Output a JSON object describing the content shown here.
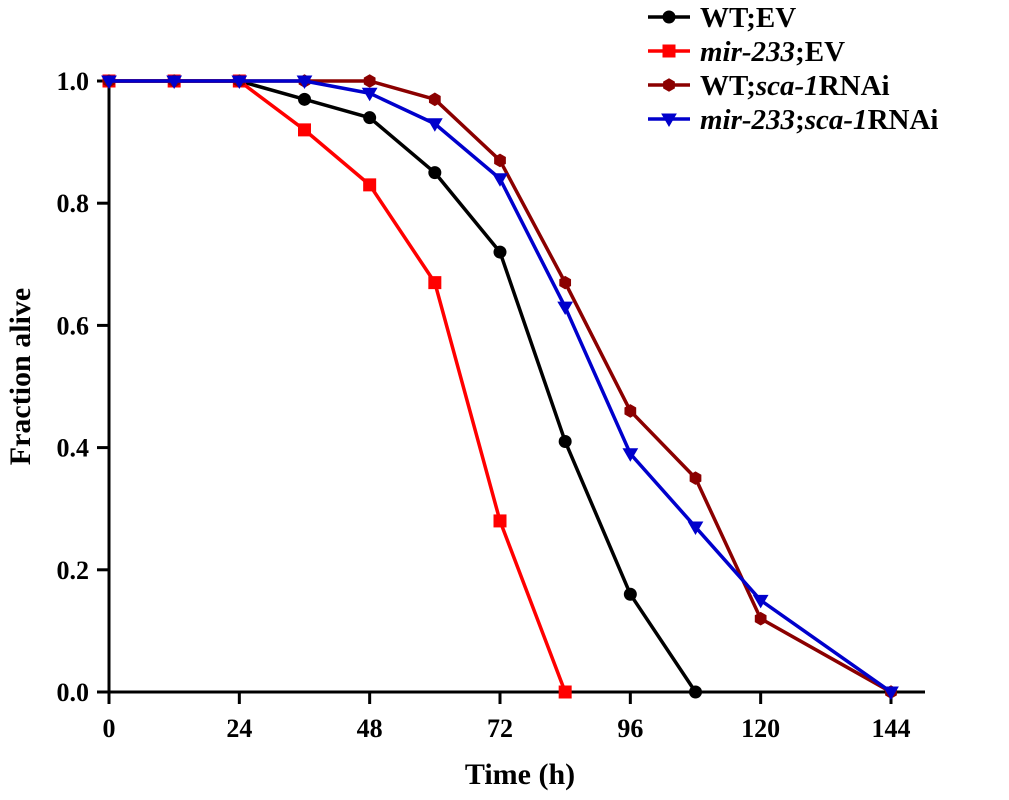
{
  "chart_data": {
    "type": "line",
    "xlabel": "Time (h)",
    "ylabel": "Fraction alive",
    "xlim": [
      0,
      144
    ],
    "ylim": [
      0,
      1.0
    ],
    "xticks": [
      0,
      24,
      48,
      72,
      96,
      120,
      144
    ],
    "xtick_labels": [
      "0",
      "24",
      "48",
      "72",
      "96",
      "120",
      "144"
    ],
    "yticks": [
      0,
      0.2,
      0.4,
      0.6,
      0.8,
      1.0
    ],
    "ytick_labels": [
      "0.0",
      "0.2",
      "0.4",
      "0.6",
      "0.8",
      "1.0"
    ],
    "grid": false,
    "legend_position": "top-right",
    "series": [
      {
        "name": "WT;EV",
        "legend_parts": [
          {
            "text": "WT;EV",
            "italic": false
          }
        ],
        "color": "#000000",
        "marker": "circle",
        "x": [
          0,
          12,
          24,
          36,
          48,
          60,
          72,
          84,
          96,
          108
        ],
        "y": [
          1.0,
          1.0,
          1.0,
          0.97,
          0.94,
          0.85,
          0.72,
          0.41,
          0.16,
          0.0
        ]
      },
      {
        "name": "mir-233;EV",
        "legend_parts": [
          {
            "text": "mir-233",
            "italic": true
          },
          {
            "text": ";EV",
            "italic": false
          }
        ],
        "color": "#ff0000",
        "marker": "square",
        "x": [
          0,
          12,
          24,
          36,
          48,
          60,
          72,
          84
        ],
        "y": [
          1.0,
          1.0,
          1.0,
          0.92,
          0.83,
          0.67,
          0.28,
          0.0
        ]
      },
      {
        "name": "WT;sca-1RNAi",
        "legend_parts": [
          {
            "text": "WT;",
            "italic": false
          },
          {
            "text": "sca-1",
            "italic": true
          },
          {
            "text": "RNAi",
            "italic": false
          }
        ],
        "color": "#8b0000",
        "marker": "hexagon",
        "x": [
          0,
          12,
          24,
          36,
          48,
          60,
          72,
          84,
          96,
          108,
          120,
          144
        ],
        "y": [
          1.0,
          1.0,
          1.0,
          1.0,
          1.0,
          0.97,
          0.87,
          0.67,
          0.46,
          0.35,
          0.12,
          0.0
        ]
      },
      {
        "name": "mir-233;sca-1RNAi",
        "legend_parts": [
          {
            "text": "mir-233",
            "italic": true
          },
          {
            "text": ";",
            "italic": false
          },
          {
            "text": "sca-1",
            "italic": true
          },
          {
            "text": "RNAi",
            "italic": false
          }
        ],
        "color": "#0000cc",
        "marker": "triangle-down",
        "x": [
          0,
          12,
          24,
          36,
          48,
          60,
          72,
          84,
          96,
          108,
          120,
          144
        ],
        "y": [
          1.0,
          1.0,
          1.0,
          1.0,
          0.98,
          0.93,
          0.84,
          0.63,
          0.39,
          0.27,
          0.15,
          0.0
        ]
      }
    ]
  }
}
